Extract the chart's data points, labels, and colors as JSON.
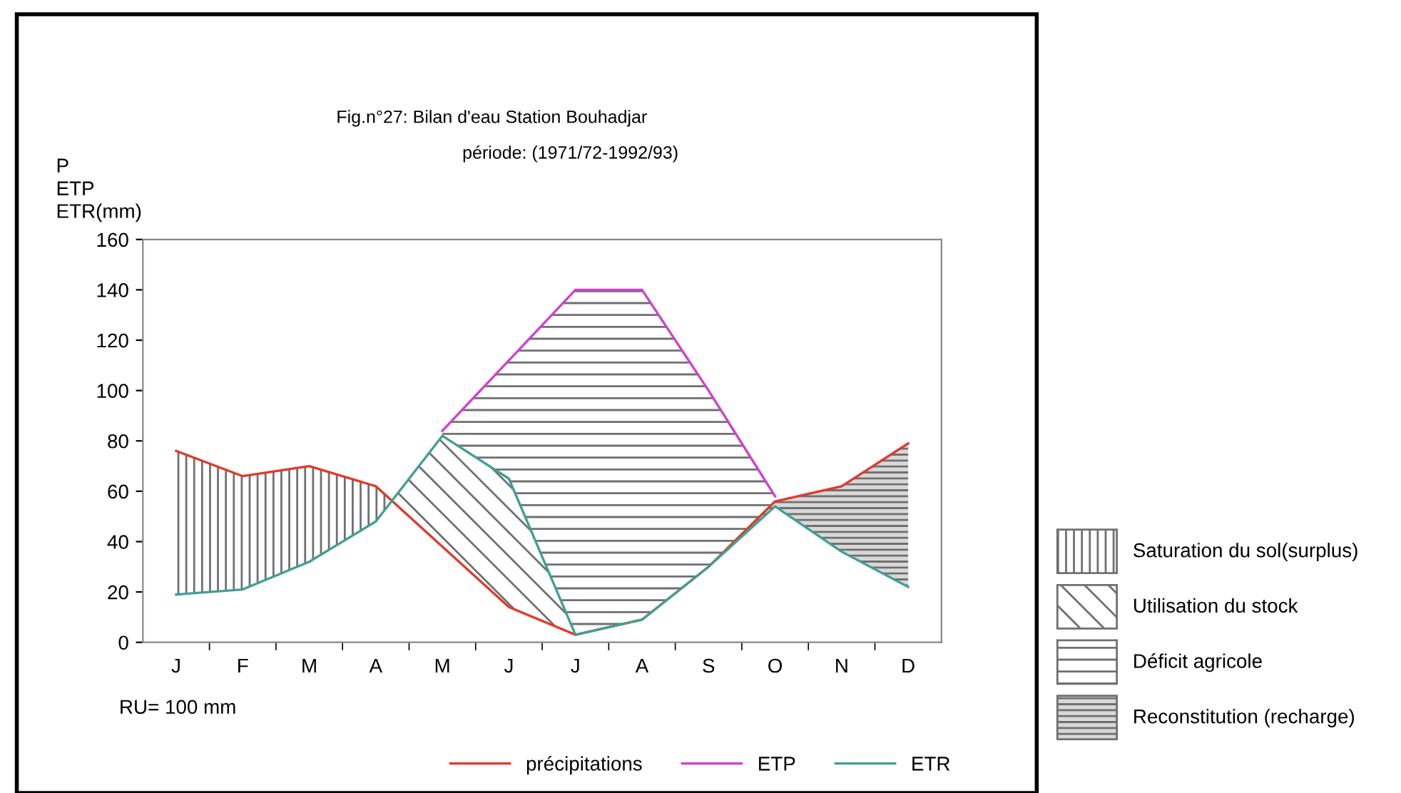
{
  "chart_data": {
    "type": "line",
    "title": "Fig.n°27: Bilan d'eau Station Bouhadjar",
    "subtitle": "période: (1971/72-1992/93)",
    "ylabel": "P\nETP\nETR(mm)",
    "annotations": [
      "RU= 100 mm",
      "Saturation du sol(surplus)",
      "Utilisation du stock",
      "Déficit agricole",
      "Reconstitution (recharge)"
    ],
    "categories": [
      "J",
      "F",
      "M",
      "A",
      "M",
      "J",
      "J",
      "A",
      "S",
      "O",
      "N",
      "D"
    ],
    "ylim": [
      0,
      160
    ],
    "yticks": [
      0,
      20,
      40,
      60,
      80,
      100,
      120,
      140,
      160
    ],
    "grid": false,
    "legend": "bottom",
    "marker": "none",
    "line_style": "solid",
    "series": [
      {
        "name": "précipitations",
        "color": "#e03a2a",
        "values": [
          76,
          66,
          70,
          62,
          38,
          14,
          3,
          9,
          30,
          56,
          62,
          79
        ]
      },
      {
        "name": "ETP",
        "color": "#d040d0",
        "values": [
          null,
          null,
          null,
          null,
          84,
          112,
          140,
          140,
          100,
          58,
          null,
          null
        ]
      },
      {
        "name": "ETR",
        "color": "#40a090",
        "values": [
          19,
          21,
          32,
          48,
          82,
          65,
          3,
          9,
          30,
          54,
          36,
          22
        ]
      }
    ]
  }
}
